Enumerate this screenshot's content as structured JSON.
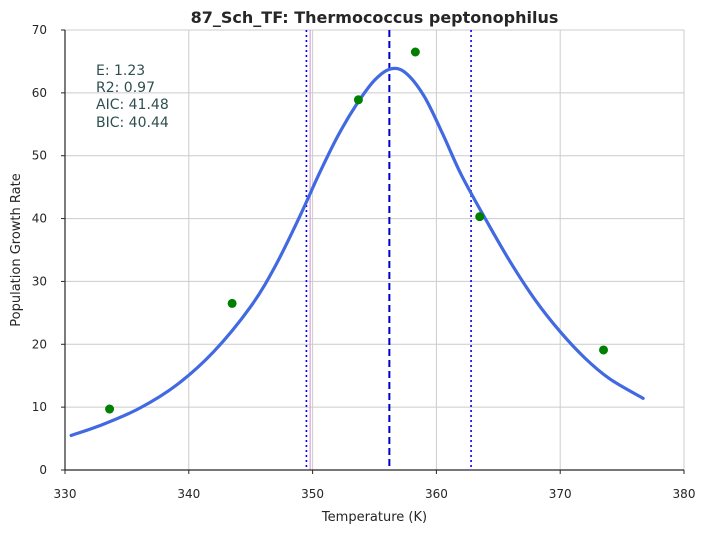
{
  "chart_data": {
    "type": "scatter",
    "title": "87_Sch_TF: Thermococcus peptonophilus",
    "xlabel": "Temperature (K)",
    "ylabel": "Population Growth Rate",
    "xlim": [
      330,
      380
    ],
    "ylim": [
      0,
      70
    ],
    "xticks": [
      330,
      340,
      350,
      360,
      370,
      380
    ],
    "yticks": [
      0,
      10,
      20,
      30,
      40,
      50,
      60,
      70
    ],
    "grid": true,
    "points": [
      {
        "x": 333.6,
        "y": 9.7
      },
      {
        "x": 343.5,
        "y": 26.5
      },
      {
        "x": 353.7,
        "y": 58.9
      },
      {
        "x": 358.3,
        "y": 66.5
      },
      {
        "x": 363.5,
        "y": 40.3
      },
      {
        "x": 373.5,
        "y": 19.1
      }
    ],
    "fit_curve": [
      {
        "x": 330.5,
        "y": 5.5
      },
      {
        "x": 333,
        "y": 7.2
      },
      {
        "x": 336,
        "y": 9.8
      },
      {
        "x": 339,
        "y": 13.5
      },
      {
        "x": 342,
        "y": 18.8
      },
      {
        "x": 345,
        "y": 26.0
      },
      {
        "x": 347,
        "y": 32.5
      },
      {
        "x": 349,
        "y": 40.5
      },
      {
        "x": 350.5,
        "y": 47.0
      },
      {
        "x": 352,
        "y": 53.0
      },
      {
        "x": 353.5,
        "y": 58.0
      },
      {
        "x": 355,
        "y": 62.0
      },
      {
        "x": 356.3,
        "y": 63.8
      },
      {
        "x": 357.5,
        "y": 63.2
      },
      {
        "x": 359,
        "y": 59.5
      },
      {
        "x": 360.5,
        "y": 53.5
      },
      {
        "x": 362,
        "y": 47.0
      },
      {
        "x": 364,
        "y": 39.8
      },
      {
        "x": 366,
        "y": 33.0
      },
      {
        "x": 368,
        "y": 27.0
      },
      {
        "x": 370,
        "y": 22.0
      },
      {
        "x": 372,
        "y": 17.8
      },
      {
        "x": 374,
        "y": 14.5
      },
      {
        "x": 376.7,
        "y": 11.4
      }
    ],
    "vlines": [
      {
        "x": 349.5,
        "style": "dotted",
        "color": "#0000ff"
      },
      {
        "x": 356.2,
        "style": "dashed",
        "color": "#0000cd"
      },
      {
        "x": 362.8,
        "style": "dotted",
        "color": "#0000ff"
      }
    ],
    "faint_vline": {
      "x": 349.8,
      "color": "#dda0dd"
    },
    "colors": {
      "curve": "#4169e1",
      "points": "#008000",
      "stats": "#2f4f4f",
      "grid": "#cccccc",
      "axis": "#262626"
    },
    "stats": {
      "lines": [
        "E:  1.23",
        "R2:  0.97",
        "AIC: 41.48",
        "BIC: 40.44"
      ],
      "placement": "top-left"
    }
  }
}
